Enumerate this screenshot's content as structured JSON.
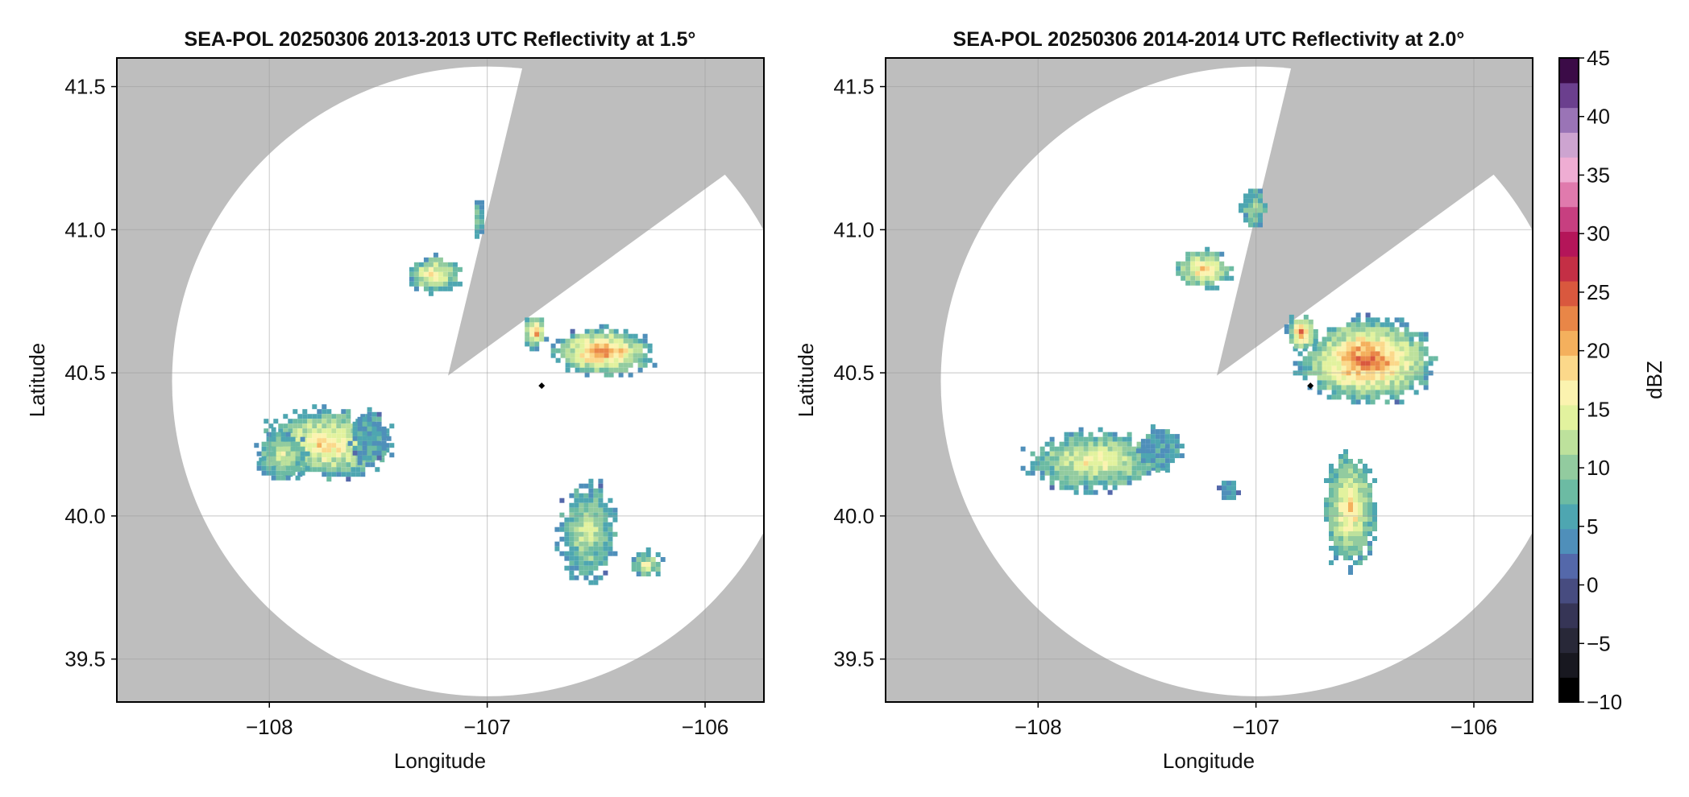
{
  "chart_data": [
    {
      "type": "heatmap",
      "subtype": "radar-ppi",
      "title": "SEA-POL 20250306 2013-2013 UTC Reflectivity at 1.5°",
      "xlabel": "Longitude",
      "ylabel": "Latitude",
      "xlim": [
        -108.7,
        -105.73
      ],
      "ylim": [
        39.35,
        41.6
      ],
      "xticks": [
        -108,
        -107,
        -106
      ],
      "xtick_labels": [
        "−108",
        "−107",
        "−106"
      ],
      "yticks": [
        39.5,
        40.0,
        40.5,
        41.0,
        41.5
      ],
      "ytick_labels": [
        "39.5",
        "40.0",
        "40.5",
        "41.0",
        "41.5"
      ],
      "grid": true,
      "radar_site": {
        "lon": -106.75,
        "lat": 40.455
      },
      "range_ring": {
        "center_lon": -107.0,
        "center_lat": 40.47,
        "radius_deg_lat": 1.1
      },
      "blocked_sector": {
        "apex": [
          -107.18,
          40.49
        ],
        "edge1": [
          -106.85,
          41.53
        ],
        "edge2": [
          -106.04,
          41.12
        ]
      },
      "echoes": [
        {
          "center": [
            -107.75,
            40.26
          ],
          "size": [
            0.32,
            0.13
          ],
          "peak_dbz": 25
        },
        {
          "center": [
            -107.95,
            40.22
          ],
          "size": [
            0.13,
            0.09
          ],
          "peak_dbz": 18
        },
        {
          "center": [
            -107.55,
            40.28
          ],
          "size": [
            0.09,
            0.1
          ],
          "peak_dbz": 10
        },
        {
          "center": [
            -107.25,
            40.85
          ],
          "size": [
            0.13,
            0.07
          ],
          "peak_dbz": 25
        },
        {
          "center": [
            -107.05,
            41.05
          ],
          "size": [
            0.03,
            0.07
          ],
          "peak_dbz": 14
        },
        {
          "center": [
            -106.48,
            40.58
          ],
          "size": [
            0.25,
            0.09
          ],
          "peak_dbz": 30
        },
        {
          "center": [
            -106.79,
            40.65
          ],
          "size": [
            0.06,
            0.06
          ],
          "peak_dbz": 30
        },
        {
          "center": [
            -106.55,
            39.95
          ],
          "size": [
            0.14,
            0.18
          ],
          "peak_dbz": 18
        },
        {
          "center": [
            -106.28,
            39.84
          ],
          "size": [
            0.08,
            0.05
          ],
          "peak_dbz": 20
        }
      ]
    },
    {
      "type": "heatmap",
      "subtype": "radar-ppi",
      "title": "SEA-POL 20250306 2014-2014 UTC Reflectivity at 2.0°",
      "xlabel": "Longitude",
      "ylabel": "Latitude",
      "xlim": [
        -108.7,
        -105.73
      ],
      "ylim": [
        39.35,
        41.6
      ],
      "xticks": [
        -108,
        -107,
        -106
      ],
      "xtick_labels": [
        "−108",
        "−107",
        "−106"
      ],
      "yticks": [
        39.5,
        40.0,
        40.5,
        41.0,
        41.5
      ],
      "ytick_labels": [
        "39.5",
        "40.0",
        "40.5",
        "41.0",
        "41.5"
      ],
      "grid": true,
      "radar_site": {
        "lon": -106.75,
        "lat": 40.455
      },
      "range_ring": {
        "center_lon": -107.0,
        "center_lat": 40.47,
        "radius_deg_lat": 1.1
      },
      "blocked_sector": {
        "apex": [
          -107.18,
          40.49
        ],
        "edge1": [
          -106.85,
          41.53
        ],
        "edge2": [
          -106.04,
          41.12
        ]
      },
      "echoes": [
        {
          "center": [
            -107.75,
            40.2
          ],
          "size": [
            0.33,
            0.11
          ],
          "peak_dbz": 22
        },
        {
          "center": [
            -107.45,
            40.24
          ],
          "size": [
            0.1,
            0.08
          ],
          "peak_dbz": 10
        },
        {
          "center": [
            -107.25,
            40.87
          ],
          "size": [
            0.14,
            0.07
          ],
          "peak_dbz": 27
        },
        {
          "center": [
            -107.02,
            41.08
          ],
          "size": [
            0.06,
            0.08
          ],
          "peak_dbz": 16
        },
        {
          "center": [
            -106.5,
            40.55
          ],
          "size": [
            0.33,
            0.16
          ],
          "peak_dbz": 32
        },
        {
          "center": [
            -106.8,
            40.65
          ],
          "size": [
            0.07,
            0.07
          ],
          "peak_dbz": 32
        },
        {
          "center": [
            -106.58,
            40.03
          ],
          "size": [
            0.13,
            0.22
          ],
          "peak_dbz": 25
        },
        {
          "center": [
            -107.13,
            40.1
          ],
          "size": [
            0.05,
            0.04
          ],
          "peak_dbz": 8
        }
      ]
    }
  ],
  "colorbar": {
    "label": "dBZ",
    "vmin": -10,
    "vmax": 45,
    "step": 2.5,
    "tick_values": [
      -10,
      -5,
      0,
      5,
      10,
      15,
      20,
      25,
      30,
      35,
      40,
      45
    ],
    "tick_labels": [
      "−10",
      "−5",
      "0",
      "5",
      "10",
      "15",
      "20",
      "25",
      "30",
      "35",
      "40",
      "45"
    ],
    "colors": [
      "#000000",
      "#181820",
      "#282838",
      "#363556",
      "#474c80",
      "#5468aa",
      "#4f8fba",
      "#4ea6b1",
      "#6cbba3",
      "#92cb9f",
      "#bde19c",
      "#e2f29e",
      "#fbf3af",
      "#fbd88a",
      "#f4b05d",
      "#e98647",
      "#d9583e",
      "#c42f45",
      "#b41559",
      "#c73f80",
      "#e07aad",
      "#efadd3",
      "#cda4d0",
      "#9a74b6",
      "#6b3f8e",
      "#3b0b47"
    ]
  },
  "colors": {
    "blocked": "#bebebe",
    "frame": "#000000",
    "grid": "#9a9a9a"
  }
}
